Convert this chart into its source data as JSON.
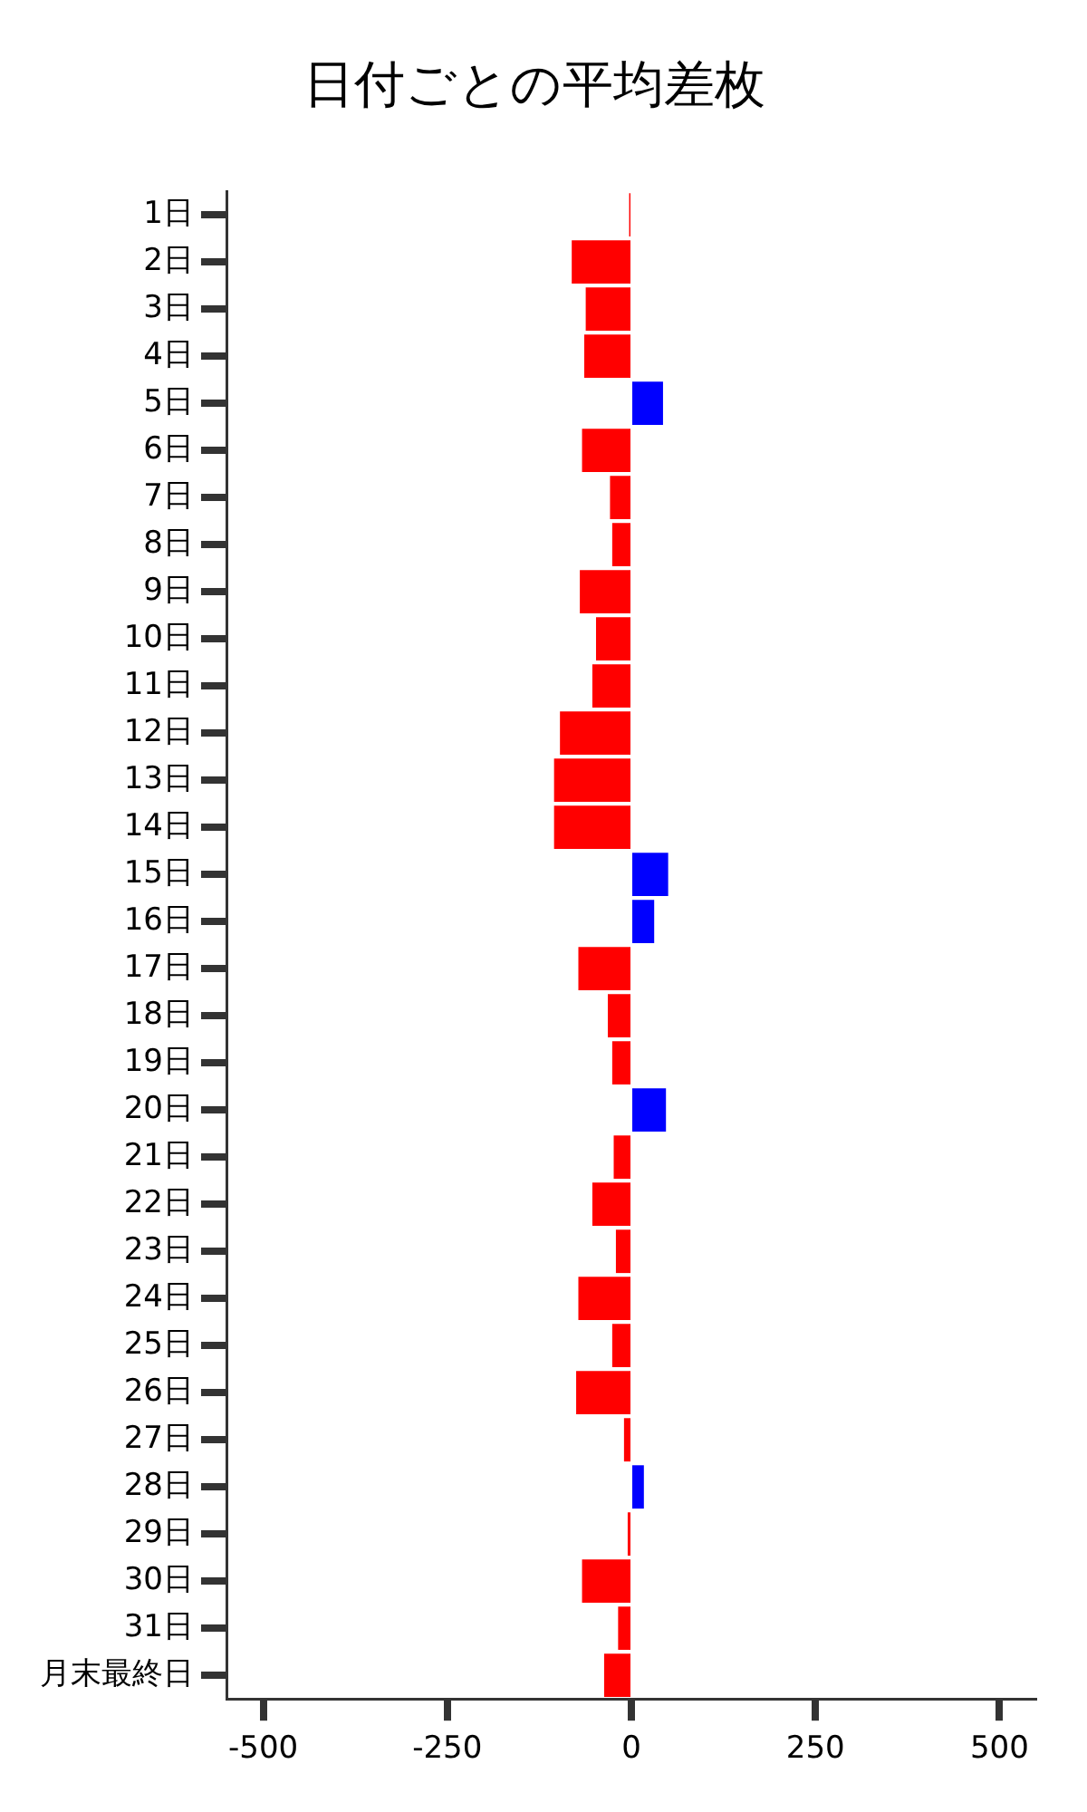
{
  "chart_data": {
    "type": "bar",
    "orientation": "horizontal",
    "title": "日付ごとの平均差枚",
    "categories": [
      "1日",
      "2日",
      "3日",
      "4日",
      "5日",
      "6日",
      "7日",
      "8日",
      "9日",
      "10日",
      "11日",
      "12日",
      "13日",
      "14日",
      "15日",
      "16日",
      "17日",
      "18日",
      "19日",
      "20日",
      "21日",
      "22日",
      "23日",
      "24日",
      "25日",
      "26日",
      "27日",
      "28日",
      "29日",
      "30日",
      "31日",
      "月末最終日"
    ],
    "values": [
      -3,
      -81,
      -62,
      -64,
      43,
      -67,
      -29,
      -26,
      -70,
      -48,
      -53,
      -97,
      -105,
      -105,
      50,
      31,
      -72,
      -32,
      -26,
      47,
      -24,
      -53,
      -21,
      -72,
      -26,
      -75,
      -10,
      17,
      -5,
      -67,
      -18,
      -37
    ],
    "colors": [
      "#ff0000",
      "#ff0000",
      "#ff0000",
      "#ff0000",
      "#0000ff",
      "#ff0000",
      "#ff0000",
      "#ff0000",
      "#ff0000",
      "#ff0000",
      "#ff0000",
      "#ff0000",
      "#ff0000",
      "#ff0000",
      "#0000ff",
      "#0000ff",
      "#ff0000",
      "#ff0000",
      "#ff0000",
      "#0000ff",
      "#ff0000",
      "#ff0000",
      "#ff0000",
      "#ff0000",
      "#ff0000",
      "#ff0000",
      "#ff0000",
      "#0000ff",
      "#ff0000",
      "#ff0000",
      "#ff0000",
      "#ff0000"
    ],
    "xlim": [
      -550,
      550
    ],
    "xticks": [
      -500,
      -250,
      0,
      250,
      500
    ],
    "grid": false,
    "legend": false
  }
}
